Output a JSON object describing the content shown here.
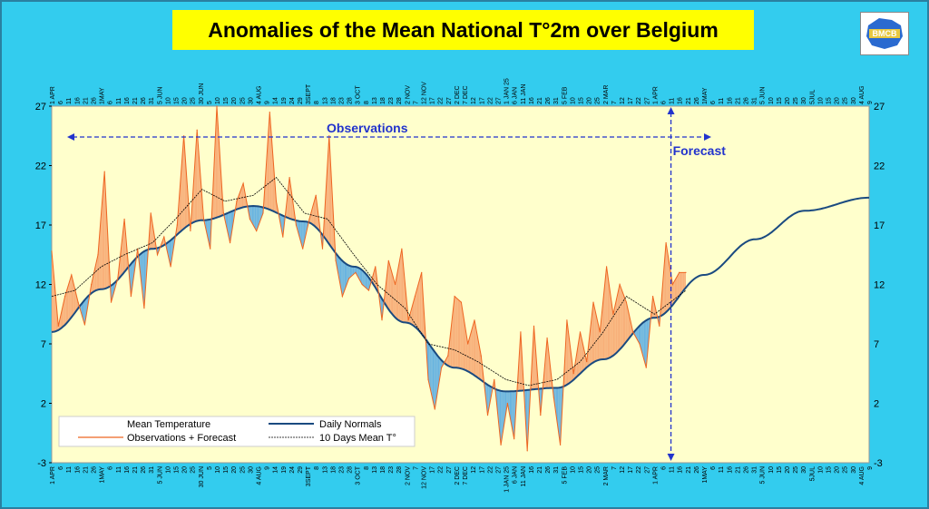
{
  "title": "Anomalies of the Mean National T°2m over Belgium",
  "logo_text": "BMCB",
  "colors": {
    "background": "#33ccee",
    "plot_area": "#ffffcc",
    "observations": "#ee6622",
    "positive_fill": "#f8b07a",
    "negative_fill": "#6ab4e0",
    "normals": "#1a4a80",
    "title_box": "#ffff00",
    "annotation": "#2233cc"
  },
  "chart_data": {
    "type": "line",
    "title": "Anomalies of the Mean National T°2m over Belgium",
    "x_range": [
      "2024-04-01",
      "2025-08-09"
    ],
    "ylim": [
      -3,
      27
    ],
    "yticks": [
      -3,
      2,
      7,
      12,
      17,
      22,
      27
    ],
    "grid": false,
    "legend_placement": "bottom-left",
    "legend": [
      "Mean Temperature",
      "Observations + Forecast",
      "Daily Normals",
      "10 Days Mean T°"
    ],
    "annotations": {
      "observations_label": "Observations",
      "forecast_label": "Forecast",
      "forecast_start": "2025-04-11"
    },
    "normals": {
      "name": "Daily Normals",
      "x": [
        "2024-04-01",
        "2024-05-01",
        "2024-06-01",
        "2024-07-01",
        "2024-08-01",
        "2024-09-01",
        "2024-10-01",
        "2024-11-01",
        "2024-12-01",
        "2025-01-01",
        "2025-02-01",
        "2025-03-01",
        "2025-04-01",
        "2025-05-01",
        "2025-06-01",
        "2025-07-01",
        "2025-08-09"
      ],
      "y": [
        8.0,
        11.6,
        15.0,
        17.4,
        18.6,
        17.3,
        13.5,
        8.8,
        5.0,
        3.0,
        3.3,
        5.7,
        9.2,
        12.8,
        15.8,
        18.2,
        19.3
      ]
    },
    "observations": {
      "name": "Observations + Forecast",
      "x": [
        "2024-04-01",
        "2024-04-05",
        "2024-04-09",
        "2024-04-13",
        "2024-04-17",
        "2024-04-21",
        "2024-04-25",
        "2024-04-29",
        "2024-05-03",
        "2024-05-07",
        "2024-05-11",
        "2024-05-15",
        "2024-05-19",
        "2024-05-23",
        "2024-05-27",
        "2024-05-31",
        "2024-06-04",
        "2024-06-08",
        "2024-06-12",
        "2024-06-16",
        "2024-06-20",
        "2024-06-24",
        "2024-06-28",
        "2024-07-02",
        "2024-07-06",
        "2024-07-10",
        "2024-07-14",
        "2024-07-18",
        "2024-07-22",
        "2024-07-26",
        "2024-07-30",
        "2024-08-03",
        "2024-08-07",
        "2024-08-11",
        "2024-08-15",
        "2024-08-19",
        "2024-08-23",
        "2024-08-27",
        "2024-08-31",
        "2024-09-04",
        "2024-09-08",
        "2024-09-12",
        "2024-09-16",
        "2024-09-20",
        "2024-09-24",
        "2024-09-28",
        "2024-10-02",
        "2024-10-06",
        "2024-10-10",
        "2024-10-14",
        "2024-10-18",
        "2024-10-22",
        "2024-10-26",
        "2024-10-30",
        "2024-11-03",
        "2024-11-07",
        "2024-11-11",
        "2024-11-15",
        "2024-11-19",
        "2024-11-23",
        "2024-11-27",
        "2024-12-01",
        "2024-12-05",
        "2024-12-09",
        "2024-12-13",
        "2024-12-17",
        "2024-12-21",
        "2024-12-25",
        "2024-12-29",
        "2025-01-02",
        "2025-01-06",
        "2025-01-10",
        "2025-01-14",
        "2025-01-18",
        "2025-01-22",
        "2025-01-26",
        "2025-01-30",
        "2025-02-03",
        "2025-02-07",
        "2025-02-11",
        "2025-02-15",
        "2025-02-19",
        "2025-02-23",
        "2025-02-27",
        "2025-03-03",
        "2025-03-07",
        "2025-03-11",
        "2025-03-15",
        "2025-03-19",
        "2025-03-23",
        "2025-03-27",
        "2025-03-31",
        "2025-04-04",
        "2025-04-08",
        "2025-04-12",
        "2025-04-16",
        "2025-04-20"
      ],
      "y": [
        14.8,
        8.5,
        11.0,
        12.8,
        10.5,
        8.6,
        12.0,
        14.5,
        21.5,
        10.5,
        12.5,
        17.5,
        11.0,
        15.0,
        10.0,
        18.0,
        14.5,
        16.0,
        13.5,
        17.0,
        24.5,
        16.5,
        25.0,
        17.5,
        15.0,
        27.0,
        18.0,
        15.5,
        19.0,
        20.5,
        17.5,
        16.5,
        18.0,
        26.5,
        19.0,
        16.0,
        21.0,
        17.0,
        15.0,
        17.5,
        19.5,
        15.0,
        24.5,
        14.0,
        11.0,
        12.5,
        13.0,
        12.0,
        11.5,
        13.5,
        9.0,
        14.0,
        12.0,
        15.0,
        9.0,
        11.0,
        13.0,
        4.0,
        1.5,
        5.0,
        6.0,
        11.0,
        10.5,
        7.0,
        9.0,
        6.0,
        1.0,
        4.0,
        -1.5,
        2.0,
        -1.0,
        8.0,
        -2.0,
        8.5,
        1.0,
        7.5,
        2.5,
        -1.5,
        9.0,
        4.5,
        8.0,
        5.5,
        10.5,
        8.0,
        13.5,
        9.5,
        12.0,
        10.5,
        8.0,
        7.0,
        5.0,
        11.0,
        8.5,
        15.5,
        12.0,
        13.0,
        13.0
      ]
    },
    "ten_day_mean": {
      "name": "10 Days Mean T°",
      "x": [
        "2024-04-01",
        "2024-04-15",
        "2024-05-01",
        "2024-05-15",
        "2024-06-01",
        "2024-06-15",
        "2024-07-01",
        "2024-07-15",
        "2024-08-01",
        "2024-08-15",
        "2024-09-01",
        "2024-09-15",
        "2024-10-01",
        "2024-10-15",
        "2024-11-01",
        "2024-11-15",
        "2024-12-01",
        "2024-12-15",
        "2025-01-01",
        "2025-01-15",
        "2025-02-01",
        "2025-02-15",
        "2025-03-01",
        "2025-03-15",
        "2025-04-01",
        "2025-04-20"
      ],
      "y": [
        11.0,
        11.5,
        13.5,
        14.5,
        15.5,
        17.5,
        20.0,
        19.0,
        19.5,
        21.0,
        18.0,
        17.5,
        14.5,
        12.0,
        10.0,
        7.0,
        6.5,
        5.5,
        4.0,
        3.5,
        4.0,
        5.5,
        8.0,
        11.0,
        9.5,
        11.5
      ]
    },
    "x_tick_labels": {
      "top": [
        "1 APR",
        "6",
        "11",
        "16",
        "21",
        "26",
        "1MAY",
        "6",
        "11",
        "16",
        "21",
        "26",
        "31",
        "5 JUN",
        "10",
        "15",
        "20",
        "25",
        "30 JUN",
        "5",
        "10",
        "15",
        "20",
        "25",
        "30",
        "4 AUG",
        "9",
        "14",
        "19",
        "24",
        "29",
        "3SEPT",
        "8",
        "13",
        "18",
        "23",
        "28",
        "3 OCT",
        "8",
        "13",
        "18",
        "23",
        "28",
        "2 NOV",
        "7",
        "12 NOV",
        "17",
        "22",
        "27",
        "2 DEC",
        "7 DEC",
        "12",
        "17",
        "22",
        "27",
        "1 JAN 25",
        "6 JAN",
        "11 JAN",
        "16",
        "21",
        "26",
        "31",
        "5 FEB",
        "10",
        "15",
        "20",
        "25",
        "2 MAR",
        "7",
        "12",
        "17",
        "22",
        "27",
        "1 APR",
        "6",
        "11",
        "16",
        "21",
        "26",
        "1MAY",
        "6",
        "11",
        "16",
        "21",
        "26",
        "31",
        "5 JUN",
        "10",
        "15",
        "20",
        "25",
        "30",
        "5JUL",
        "10",
        "15",
        "20",
        "25",
        "30",
        "4 AUG",
        "9"
      ],
      "bottom": [
        "1 APR",
        "6",
        "11",
        "16",
        "21",
        "26",
        "1MAY",
        "6",
        "11",
        "16",
        "21",
        "26",
        "31",
        "5 JUN",
        "10",
        "15",
        "20",
        "25",
        "30 JUN",
        "5",
        "10",
        "15",
        "20",
        "25",
        "30",
        "4 AUG",
        "9",
        "14",
        "19",
        "24",
        "29",
        "3SEPT",
        "8",
        "13",
        "18",
        "23",
        "28",
        "3 OCT",
        "8",
        "13",
        "18",
        "23",
        "28",
        "2 NOV",
        "7",
        "12 NOV",
        "17",
        "22",
        "27",
        "2 DEC",
        "7 DEC",
        "12",
        "17",
        "22",
        "27",
        "1 JAN 25",
        "6 JAN",
        "11 JAN",
        "16",
        "21",
        "26",
        "31",
        "5 FEB",
        "10",
        "15",
        "20",
        "25",
        "2 MAR",
        "7",
        "12",
        "17",
        "22",
        "27",
        "1 APR",
        "6",
        "11",
        "16",
        "21",
        "26",
        "1MAY",
        "6",
        "11",
        "16",
        "21",
        "26",
        "31",
        "5 JUN",
        "10",
        "15",
        "20",
        "25",
        "30",
        "5JUL",
        "10",
        "15",
        "20",
        "25",
        "30",
        "4 AUG",
        "9"
      ]
    }
  }
}
